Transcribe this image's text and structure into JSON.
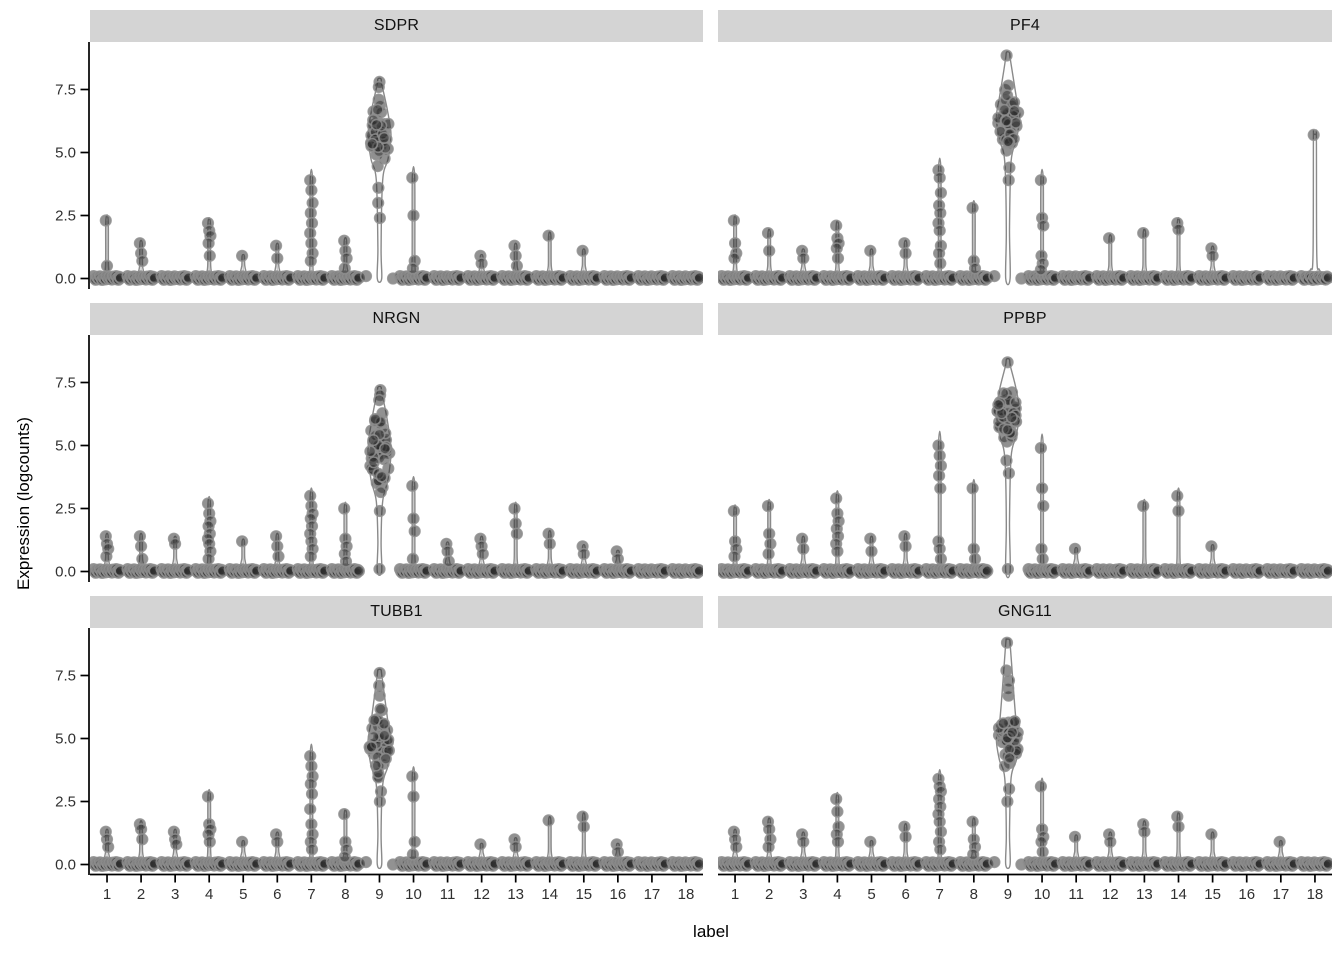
{
  "chart_data": {
    "type": "violin-jitter-facet-grid",
    "xlabel": "label",
    "ylabel": "Expression (logcounts)",
    "x_categories": [
      "1",
      "2",
      "3",
      "4",
      "5",
      "6",
      "7",
      "8",
      "9",
      "10",
      "11",
      "12",
      "13",
      "14",
      "15",
      "16",
      "17",
      "18"
    ],
    "y_ticks": [
      "0.0",
      "2.5",
      "5.0",
      "7.5"
    ],
    "ylim": [
      -0.45,
      9.35
    ],
    "legend": "none",
    "grid": "off",
    "style": {
      "strip_bg": "#d4d4d4",
      "strip_text": "#111111",
      "axis_line": "#000000",
      "tick_text": "#303030",
      "point_fill": "#2e2e2e",
      "point_fill_opacity": 0.52,
      "point_stroke": "#8f8f8f",
      "violin_stroke": "#8a8a8a",
      "violin_fill": "#fcfcfc"
    },
    "facets": [
      {
        "gene": "SDPR",
        "row": 0,
        "col": 0,
        "labels": {
          "1": {
            "pts": [
              2.3,
              0.5
            ]
          },
          "2": {
            "pts": [
              1.4,
              1.0,
              0.7
            ]
          },
          "3": {
            "pts": []
          },
          "4": {
            "pts": [
              2.2,
              1.9,
              1.7,
              1.4,
              0.9
            ]
          },
          "5": {
            "pts": [
              0.9
            ]
          },
          "6": {
            "pts": [
              1.3,
              0.8
            ]
          },
          "7": {
            "pts": [
              3.9,
              3.5,
              3.0,
              2.6,
              2.2,
              1.8,
              1.4,
              1.0,
              0.7
            ]
          },
          "8": {
            "pts": [
              1.5,
              1.1,
              0.8,
              0.4
            ]
          },
          "9": {
            "pts": [],
            "cluster": {
              "min": 4.2,
              "max": 7.2,
              "n": 44
            },
            "upper": [
              7.8,
              7.6
            ],
            "tail": [
              3.6,
              3.0,
              2.4
            ],
            "base_n": 2
          },
          "10": {
            "pts": [
              4.0,
              2.5,
              0.7,
              0.4
            ]
          },
          "11": {
            "pts": []
          },
          "12": {
            "pts": [
              0.9,
              0.6
            ]
          },
          "13": {
            "pts": [
              1.3,
              0.9,
              0.5
            ]
          },
          "14": {
            "pts": [
              1.7
            ]
          },
          "15": {
            "pts": [
              1.1
            ]
          },
          "16": {
            "pts": []
          },
          "17": {
            "pts": []
          },
          "18": {
            "pts": []
          }
        }
      },
      {
        "gene": "PF4",
        "row": 0,
        "col": 1,
        "labels": {
          "1": {
            "pts": [
              2.3,
              1.4,
              1.0,
              0.8
            ]
          },
          "2": {
            "pts": [
              1.8,
              1.1
            ]
          },
          "3": {
            "pts": [
              1.1,
              0.8
            ]
          },
          "4": {
            "pts": [
              2.1,
              1.6,
              1.4,
              1.2,
              0.8
            ]
          },
          "5": {
            "pts": [
              1.1
            ]
          },
          "6": {
            "pts": [
              1.4,
              1.0
            ]
          },
          "7": {
            "pts": [
              4.3,
              4.0,
              3.4,
              2.9,
              2.6,
              2.2,
              1.9,
              1.3,
              1.0,
              0.6
            ]
          },
          "8": {
            "pts": [
              2.8,
              0.7,
              0.4
            ]
          },
          "9": {
            "pts": [],
            "cluster": {
              "min": 5.0,
              "max": 7.8,
              "n": 46
            },
            "upper": [
              8.85
            ],
            "tail": [
              4.4,
              3.9
            ],
            "base_n": 2
          },
          "10": {
            "pts": [
              3.9,
              2.4,
              2.1,
              0.9,
              0.6,
              0.35
            ]
          },
          "11": {
            "pts": []
          },
          "12": {
            "pts": [
              1.6
            ]
          },
          "13": {
            "pts": [
              1.8
            ]
          },
          "14": {
            "pts": [
              2.2,
              1.95
            ]
          },
          "15": {
            "pts": [
              1.2,
              0.9
            ]
          },
          "16": {
            "pts": []
          },
          "17": {
            "pts": []
          },
          "18": {
            "pts": [
              5.7
            ],
            "violin": "trumpet",
            "base_n": 20
          }
        }
      },
      {
        "gene": "NRGN",
        "row": 1,
        "col": 0,
        "labels": {
          "1": {
            "pts": [
              1.4,
              1.1,
              0.9,
              0.6
            ]
          },
          "2": {
            "pts": [
              1.4,
              1.0,
              0.5
            ]
          },
          "3": {
            "pts": [
              1.3,
              1.1
            ]
          },
          "4": {
            "pts": [
              2.7,
              2.3,
              2.0,
              1.8,
              1.5,
              1.3,
              1.1,
              0.8,
              0.5
            ]
          },
          "5": {
            "pts": [
              1.2
            ]
          },
          "6": {
            "pts": [
              1.4,
              1.0,
              0.6
            ]
          },
          "7": {
            "pts": [
              3.0,
              2.6,
              2.3,
              2.1,
              1.8,
              1.5,
              1.2,
              0.9,
              0.6
            ]
          },
          "8": {
            "pts": [
              2.5,
              1.3,
              1.0,
              0.7,
              0.4
            ]
          },
          "9": {
            "pts": [],
            "cluster": {
              "min": 3.0,
              "max": 6.6,
              "n": 50
            },
            "upper": [
              7.2,
              7.0,
              6.8
            ],
            "tail": [
              2.4
            ],
            "base_n": 1
          },
          "10": {
            "pts": [
              3.4,
              2.1,
              1.6,
              0.5
            ]
          },
          "11": {
            "pts": [
              1.1,
              0.8,
              0.4
            ]
          },
          "12": {
            "pts": [
              1.3,
              1.0,
              0.7
            ]
          },
          "13": {
            "pts": [
              2.5,
              1.9,
              1.5
            ]
          },
          "14": {
            "pts": [
              1.5,
              1.1
            ]
          },
          "15": {
            "pts": [
              1.0,
              0.7
            ]
          },
          "16": {
            "pts": [
              0.8,
              0.5
            ]
          },
          "17": {
            "pts": []
          },
          "18": {
            "pts": []
          }
        }
      },
      {
        "gene": "PPBP",
        "row": 1,
        "col": 1,
        "labels": {
          "1": {
            "pts": [
              2.4,
              1.2,
              0.9,
              0.6
            ]
          },
          "2": {
            "pts": [
              2.6,
              1.5,
              1.1,
              0.7
            ]
          },
          "3": {
            "pts": [
              1.3,
              0.9
            ]
          },
          "4": {
            "pts": [
              2.9,
              2.3,
              2.0,
              1.7,
              1.4,
              1.1,
              0.8
            ]
          },
          "5": {
            "pts": [
              1.3,
              0.8
            ]
          },
          "6": {
            "pts": [
              1.4,
              1.0
            ]
          },
          "7": {
            "pts": [
              5.0,
              4.6,
              4.2,
              3.8,
              3.3,
              1.2,
              0.9,
              0.5
            ]
          },
          "8": {
            "pts": [
              3.3,
              0.9,
              0.5
            ]
          },
          "9": {
            "pts": [],
            "cluster": {
              "min": 4.9,
              "max": 7.8,
              "n": 48
            },
            "upper": [
              8.3
            ],
            "tail": [
              4.4,
              3.9
            ],
            "base_n": 1
          },
          "10": {
            "pts": [
              4.9,
              3.3,
              2.6,
              0.9,
              0.5
            ]
          },
          "11": {
            "pts": [
              0.9
            ]
          },
          "12": {
            "pts": []
          },
          "13": {
            "pts": [
              2.6
            ]
          },
          "14": {
            "pts": [
              3.0,
              2.4
            ]
          },
          "15": {
            "pts": [
              1.0
            ]
          },
          "16": {
            "pts": []
          },
          "17": {
            "pts": []
          },
          "18": {
            "pts": []
          }
        }
      },
      {
        "gene": "TUBB1",
        "row": 2,
        "col": 0,
        "labels": {
          "1": {
            "pts": [
              1.3,
              1.0,
              0.7
            ]
          },
          "2": {
            "pts": [
              1.6,
              1.4,
              1.0
            ]
          },
          "3": {
            "pts": [
              1.3,
              1.0,
              0.8
            ]
          },
          "4": {
            "pts": [
              2.7,
              1.6,
              1.4,
              1.2,
              0.9
            ]
          },
          "5": {
            "pts": [
              0.9
            ]
          },
          "6": {
            "pts": [
              1.2,
              0.9
            ]
          },
          "7": {
            "pts": [
              4.3,
              3.9,
              3.5,
              3.2,
              2.8,
              2.2,
              1.6,
              1.2,
              0.9,
              0.6
            ]
          },
          "8": {
            "pts": [
              2.0,
              0.9,
              0.6,
              0.3
            ]
          },
          "9": {
            "pts": [],
            "cluster": {
              "min": 3.4,
              "max": 6.3,
              "n": 44
            },
            "upper": [
              7.6,
              7.1,
              6.7
            ],
            "tail": [
              2.9,
              2.5
            ],
            "base_n": 2
          },
          "10": {
            "pts": [
              3.5,
              2.7,
              0.9,
              0.4
            ]
          },
          "11": {
            "pts": []
          },
          "12": {
            "pts": [
              0.8
            ]
          },
          "13": {
            "pts": [
              1.0,
              0.7
            ]
          },
          "14": {
            "pts": [
              1.75
            ]
          },
          "15": {
            "pts": [
              1.9,
              1.5
            ]
          },
          "16": {
            "pts": [
              0.8,
              0.5
            ]
          },
          "17": {
            "pts": []
          },
          "18": {
            "pts": []
          }
        }
      },
      {
        "gene": "GNG11",
        "row": 2,
        "col": 1,
        "labels": {
          "1": {
            "pts": [
              1.3,
              1.0,
              0.7
            ]
          },
          "2": {
            "pts": [
              1.7,
              1.4,
              1.0,
              0.7
            ]
          },
          "3": {
            "pts": [
              1.2,
              0.9
            ]
          },
          "4": {
            "pts": [
              2.6,
              2.1,
              1.5,
              1.2,
              0.9
            ]
          },
          "5": {
            "pts": [
              0.9
            ]
          },
          "6": {
            "pts": [
              1.5,
              1.1
            ]
          },
          "7": {
            "pts": [
              3.4,
              3.1,
              2.9,
              2.6,
              2.3,
              2.0,
              1.7,
              1.3,
              0.9,
              0.6
            ]
          },
          "8": {
            "pts": [
              1.7,
              1.0,
              0.7,
              0.4
            ]
          },
          "9": {
            "pts": [],
            "cluster": {
              "min": 3.7,
              "max": 6.2,
              "n": 46
            },
            "upper": [
              8.8,
              7.7,
              7.3,
              7.0,
              6.7
            ],
            "tail": [
              3.0,
              2.5
            ],
            "base_n": 2
          },
          "10": {
            "pts": [
              3.1,
              1.4,
              1.1,
              0.9,
              0.5
            ]
          },
          "11": {
            "pts": [
              1.1
            ]
          },
          "12": {
            "pts": [
              1.2,
              0.9
            ]
          },
          "13": {
            "pts": [
              1.6,
              1.3
            ]
          },
          "14": {
            "pts": [
              1.9,
              1.5
            ]
          },
          "15": {
            "pts": [
              1.2
            ]
          },
          "16": {
            "pts": []
          },
          "17": {
            "pts": [
              0.9
            ]
          },
          "18": {
            "pts": []
          }
        }
      }
    ]
  },
  "layout_note": "2 columns x 3 rows facet grid, y axis shared per row, x axis labels on bottom row only"
}
